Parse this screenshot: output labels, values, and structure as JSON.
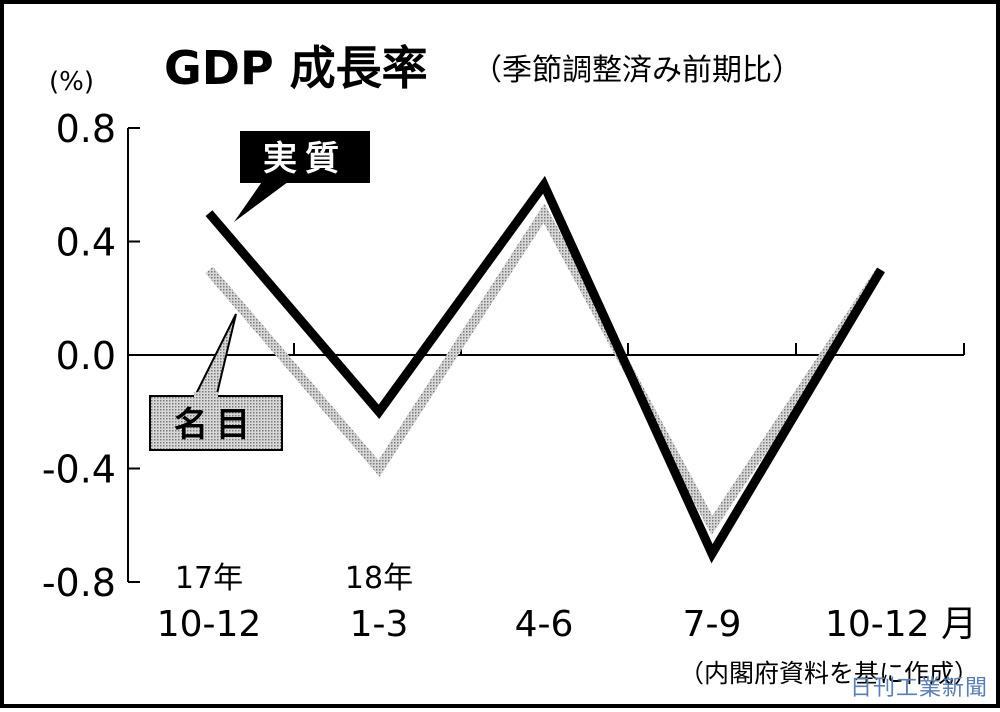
{
  "chart_data": {
    "type": "line",
    "title": "GDP 成長率",
    "subtitle": "（季節調整済み前期比）",
    "ylabel": "(%)",
    "ylim": [
      -0.8,
      0.8
    ],
    "yticks": [
      "0.8",
      "0.4",
      "0.0",
      "-0.4",
      "-0.8"
    ],
    "ytick_values": [
      0.8,
      0.4,
      0.0,
      -0.4,
      -0.8
    ],
    "grid": false,
    "categories": [
      "10-12",
      "1-3",
      "4-6",
      "7-9",
      "10-12 月"
    ],
    "year_labels": [
      "17年",
      "18年",
      "",
      "",
      ""
    ],
    "series": [
      {
        "name": "実質",
        "values": [
          0.5,
          -0.2,
          0.6,
          -0.7,
          0.3
        ],
        "color": "#000000",
        "style": "solid"
      },
      {
        "name": "名目",
        "values": [
          0.3,
          -0.4,
          0.5,
          -0.6,
          0.3
        ],
        "color": "#b8b8b8",
        "style": "dotted-gray"
      }
    ],
    "source": "（内閣府資料を基に作成）"
  },
  "watermark": "日刊工業新聞"
}
